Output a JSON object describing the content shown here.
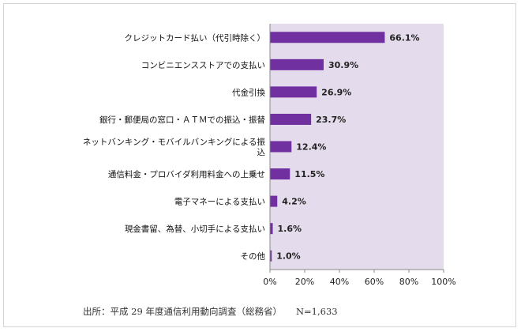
{
  "chart_data": {
    "type": "bar",
    "orientation": "horizontal",
    "categories": [
      [
        "クレジットカード払い（代引時除く）"
      ],
      [
        "コンビニエンスストアでの支払い"
      ],
      [
        "代金引換"
      ],
      [
        "銀行・郵便局の窓口・ＡＴＭでの振込・振替"
      ],
      [
        "ネットバンキング・モバイルバンキングによる振",
        "込"
      ],
      [
        "通信料金・プロバイダ利用料金への上乗せ"
      ],
      [
        "電子マネーによる支払い"
      ],
      [
        "現金書留、為替、小切手による支払い"
      ],
      [
        "その他"
      ]
    ],
    "values": [
      66.1,
      30.9,
      26.9,
      23.7,
      12.4,
      11.5,
      4.2,
      1.6,
      1.0
    ],
    "value_labels": [
      "66.1%",
      "30.9%",
      "26.9%",
      "23.7%",
      "12.4%",
      "11.5%",
      "4.2%",
      "1.6%",
      "1.0%"
    ],
    "xlim": [
      0,
      100
    ],
    "xticks": [
      0,
      20,
      40,
      60,
      80,
      100
    ],
    "xtick_labels": [
      "0%",
      "20%",
      "40%",
      "60%",
      "80%",
      "100%"
    ],
    "grid": false,
    "colors": {
      "bar": "#7030a0",
      "plot_background": "#e4dcec",
      "axis": "#8a8a8a"
    }
  },
  "source": {
    "text": "出所：平成 29 年度通信利用動向調査（総務省）",
    "n": "N=1,633"
  }
}
